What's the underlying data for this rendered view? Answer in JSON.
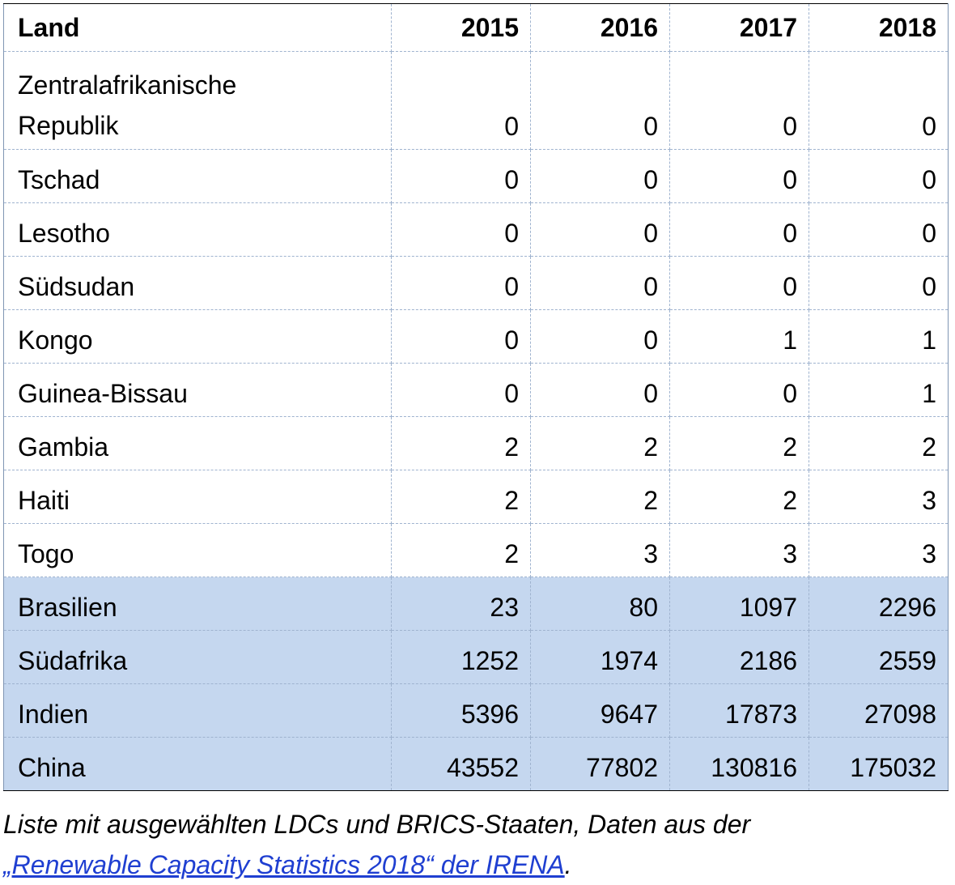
{
  "table": {
    "headers": [
      "Land",
      "2015",
      "2016",
      "2017",
      "2018"
    ],
    "rows": [
      {
        "land": "Zentralafrikanische Republik",
        "values": [
          "0",
          "0",
          "0",
          "0"
        ],
        "highlight": false
      },
      {
        "land": "Tschad",
        "values": [
          "0",
          "0",
          "0",
          "0"
        ],
        "highlight": false
      },
      {
        "land": "Lesotho",
        "values": [
          "0",
          "0",
          "0",
          "0"
        ],
        "highlight": false
      },
      {
        "land": "Südsudan",
        "values": [
          "0",
          "0",
          "0",
          "0"
        ],
        "highlight": false
      },
      {
        "land": "Kongo",
        "values": [
          "0",
          "0",
          "1",
          "1"
        ],
        "highlight": false
      },
      {
        "land": "Guinea-Bissau",
        "values": [
          "0",
          "0",
          "0",
          "1"
        ],
        "highlight": false
      },
      {
        "land": "Gambia",
        "values": [
          "2",
          "2",
          "2",
          "2"
        ],
        "highlight": false
      },
      {
        "land": "Haiti",
        "values": [
          "2",
          "2",
          "2",
          "3"
        ],
        "highlight": false
      },
      {
        "land": "Togo",
        "values": [
          "2",
          "3",
          "3",
          "3"
        ],
        "highlight": false
      },
      {
        "land": "Brasilien",
        "values": [
          "23",
          "80",
          "1097",
          "2296"
        ],
        "highlight": true
      },
      {
        "land": "Südafrika",
        "values": [
          "1252",
          "1974",
          "2186",
          "2559"
        ],
        "highlight": true
      },
      {
        "land": "Indien",
        "values": [
          "5396",
          "9647",
          "17873",
          "27098"
        ],
        "highlight": true
      },
      {
        "land": "China",
        "values": [
          "43552",
          "77802",
          "130816",
          "175032"
        ],
        "highlight": true
      }
    ],
    "highlight_color": "#c5d7ef"
  },
  "caption": {
    "text": "Liste mit ausgewählten LDCs und BRICS-Staaten, Daten aus der",
    "link_text": "„Renewable Capacity Statistics 2018“ der IRENA",
    "trailing": ".",
    "link_color": "#1f3fd1"
  }
}
